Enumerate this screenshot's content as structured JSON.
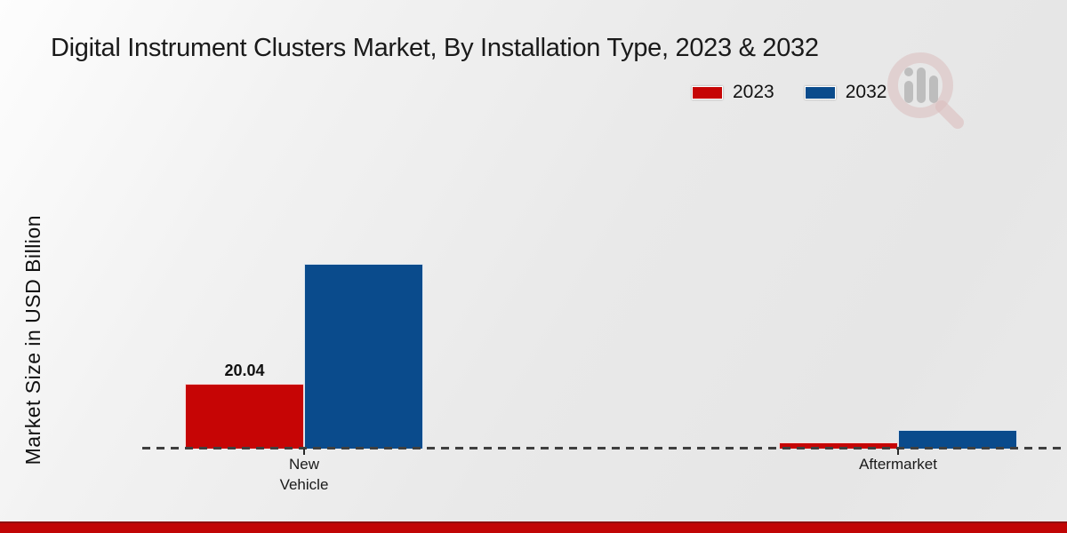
{
  "title": "Digital Instrument Clusters Market, By Installation Type, 2023 & 2032",
  "ylabel": "Market Size in USD Billion",
  "legend": {
    "position": "top-right",
    "items": [
      {
        "label": "2023",
        "color": "#c60505"
      },
      {
        "label": "2032",
        "color": "#0a4b8c"
      }
    ]
  },
  "watermark": {
    "icon": "magnifier-bar-chart-logo",
    "ring_color": "#d9b6b6",
    "bar_color": "#ababab"
  },
  "bottom_stripe_color": "#c10505",
  "chart_data": {
    "type": "bar",
    "categories": [
      "New Vehicle",
      "Aftermarket"
    ],
    "series": [
      {
        "name": "2023",
        "color": "#c60505",
        "values": [
          20.04,
          1.9
        ]
      },
      {
        "name": "2032",
        "color": "#0a4b8c",
        "values": [
          57.1,
          5.8
        ]
      }
    ],
    "value_labels": [
      "20.04"
    ],
    "title": "Digital Instrument Clusters Market, By Installation Type, 2023 & 2032",
    "xlabel": "",
    "ylabel": "Market Size in USD Billion",
    "ylim": [
      0,
      112
    ],
    "grid": false,
    "axis_style": "dashed-baseline-only",
    "legend_position": "top-right"
  }
}
